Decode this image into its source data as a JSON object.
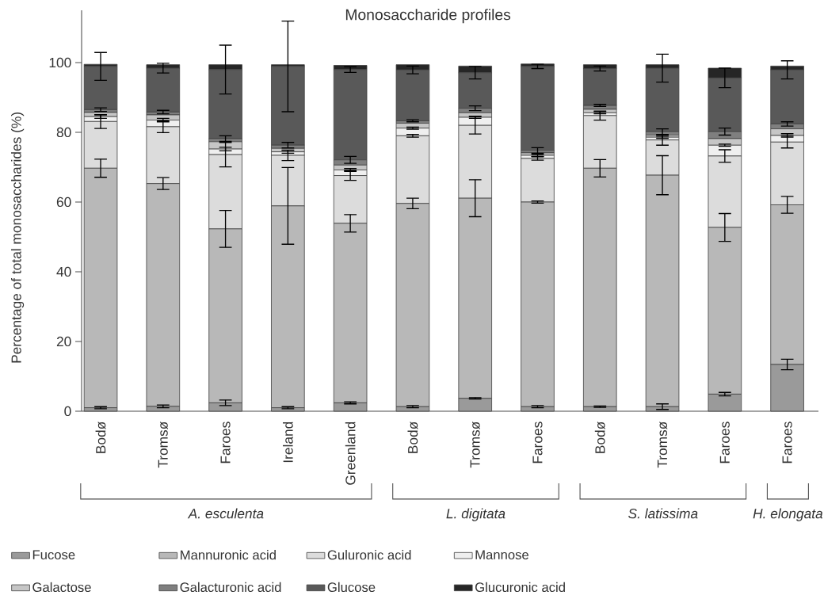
{
  "chart_data": {
    "type": "bar",
    "stacked": true,
    "title": "Monosaccharide profiles",
    "ylabel": "Percentage of total monosaccharides  (%)",
    "categories": [
      "Bodø",
      "Tromsø",
      "Faroes",
      "Ireland",
      "Greenland",
      "Bodø",
      "Tromsø",
      "Faroes",
      "Bodø",
      "Tromsø",
      "Faroes",
      "Faroes"
    ],
    "ylim": [
      0,
      115
    ],
    "yticks": [
      0,
      20,
      40,
      60,
      80,
      100
    ],
    "legend": "bottom",
    "annotations": [
      "A. esculenta",
      "L. digitata",
      "S. latissima",
      "H. elongata"
    ],
    "series": [
      {
        "name": "Fucose",
        "color": "#9a9a9a",
        "values": [
          1.0,
          1.4,
          2.4,
          1.0,
          2.4,
          1.3,
          3.7,
          1.3,
          1.3,
          1.3,
          4.9,
          13.4
        ],
        "errors": [
          0.3,
          0.4,
          0.8,
          0.3,
          0.3,
          0.3,
          0.2,
          0.3,
          0.2,
          0.8,
          0.5,
          1.5
        ]
      },
      {
        "name": "Mannuronic acid",
        "color": "#b8b8b8",
        "values": [
          68.7,
          63.9,
          49.9,
          57.9,
          51.5,
          58.3,
          57.4,
          58.7,
          68.4,
          66.4,
          47.8,
          45.8
        ],
        "errors": [
          2.6,
          1.7,
          5.3,
          11,
          2.5,
          1.5,
          5.3,
          0.3,
          2.5,
          5.6,
          4,
          2.4
        ]
      },
      {
        "name": "Guluronic acid",
        "color": "#dcdcdc",
        "values": [
          13.4,
          16.3,
          21.3,
          14.5,
          13.7,
          19.4,
          20.9,
          12.5,
          15.1,
          10.1,
          20.5,
          18.0
        ],
        "errors": [
          2,
          1.7,
          3.5,
          1.5,
          1.4,
          0.4,
          2.5,
          0.5,
          1.3,
          1.5,
          1.8,
          1.7
        ]
      },
      {
        "name": "Mannose",
        "color": "#efefef",
        "values": [
          1.4,
          1.9,
          1.6,
          1.0,
          1.6,
          2.2,
          2.3,
          0.9,
          0.8,
          0.8,
          3.1,
          1.9
        ],
        "errors": [
          0.5,
          0.5,
          0.5,
          0.4,
          0.4,
          0.3,
          0.3,
          0.3,
          0.3,
          0.3,
          0.3,
          0.5
        ]
      },
      {
        "name": "Galactose",
        "color": "#c6c6c6",
        "values": [
          1.2,
          1.5,
          2.1,
          1.0,
          1.4,
          1.4,
          1.3,
          0.7,
          1.0,
          0.6,
          1.9,
          1.9
        ]
      },
      {
        "name": "Galacturonic acid",
        "color": "#7f7f7f",
        "values": [
          0.8,
          0.8,
          0.9,
          0.9,
          1.5,
          0.7,
          1.3,
          0.7,
          1.1,
          1.0,
          2.0,
          1.4
        ],
        "errors": [
          0.5,
          0.5,
          0.8,
          0.8,
          1.0,
          0.3,
          0.7,
          0.8,
          0.3,
          0.8,
          1.0,
          0.6
        ]
      },
      {
        "name": "Glucose",
        "color": "#595959",
        "values": [
          12.4,
          12.6,
          19.8,
          22.6,
          25.9,
          14.6,
          10.2,
          24.1,
          10.6,
          18.2,
          15.4,
          15.5
        ],
        "errors": [
          4,
          1.4,
          7,
          13,
          0.8,
          1.1,
          1.8,
          0.6,
          0.7,
          4,
          2.8,
          2.6
        ]
      },
      {
        "name": "Glucuronic acid",
        "color": "#262626",
        "values": [
          0.6,
          1.0,
          1.4,
          0.5,
          1.2,
          1.5,
          1.9,
          0.7,
          1.1,
          1.0,
          2.8,
          1.1
        ]
      }
    ]
  }
}
